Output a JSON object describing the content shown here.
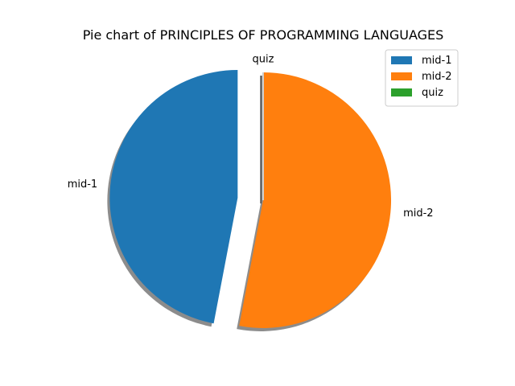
{
  "chart_data": {
    "type": "pie",
    "title": "Pie chart of PRINCIPLES OF PROGRAMMING LANGUAGES",
    "labels": [
      "mid-1",
      "mid-2",
      "quiz"
    ],
    "values": [
      47,
      53,
      0
    ],
    "colors": [
      "#1f77b4",
      "#ff7f0e",
      "#2ca02c"
    ],
    "explode": [
      0.2,
      0,
      0
    ],
    "shadow": true,
    "start_angle_deg": 90,
    "direction": "counterclockwise",
    "legend": {
      "position": "top-right",
      "entries": [
        "mid-1",
        "mid-2",
        "quiz"
      ]
    }
  }
}
